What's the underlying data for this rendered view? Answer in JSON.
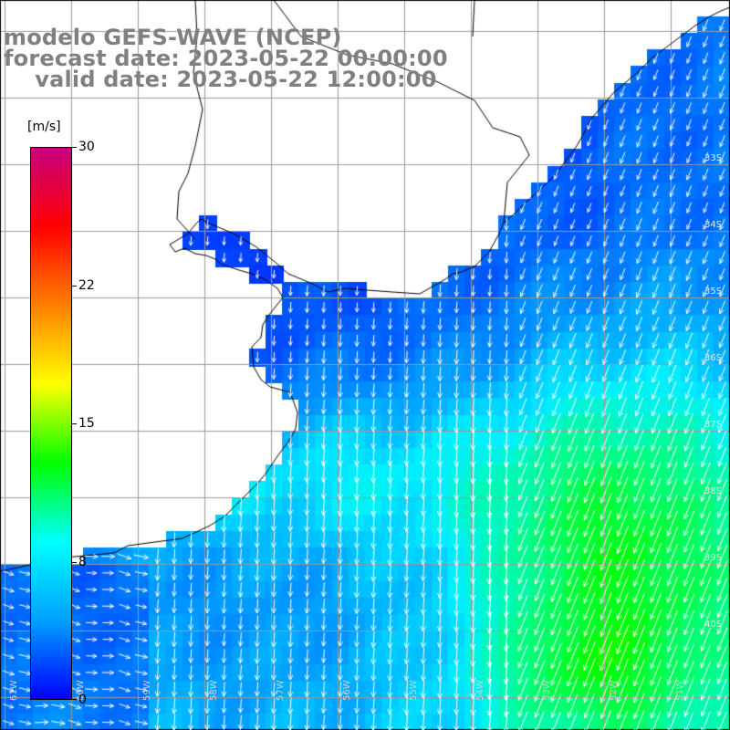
{
  "title": {
    "line1": "modelo GEFS-WAVE (NCEP)",
    "line2": "forecast date: 2023-05-22 00:00:00",
    "line3": "    valid date: 2023-05-22 12:00:00"
  },
  "colorbar": {
    "unit": "[m/s]",
    "min": 0,
    "max": 30,
    "ticks": [
      "30",
      "22",
      "15",
      "8",
      "0"
    ],
    "colors": [
      "#0000ff",
      "#00a0ff",
      "#00ffff",
      "#00ff00",
      "#ffff00",
      "#ff8000",
      "#ff0000",
      "#c80080"
    ]
  },
  "map": {
    "variable": "wind speed",
    "arrow_color": "#ffffff",
    "land_color": "#ffffff",
    "grid_color": "#9a9a9a",
    "coast_color": "#000000",
    "lon_labels": [
      "61W",
      "60W",
      "59W",
      "58W",
      "57W",
      "56W",
      "55W",
      "54W",
      "53W",
      "52W",
      "51W"
    ],
    "lat_labels": [
      "33S",
      "34S",
      "35S",
      "36S",
      "37S",
      "38S",
      "39S",
      "40S"
    ]
  }
}
